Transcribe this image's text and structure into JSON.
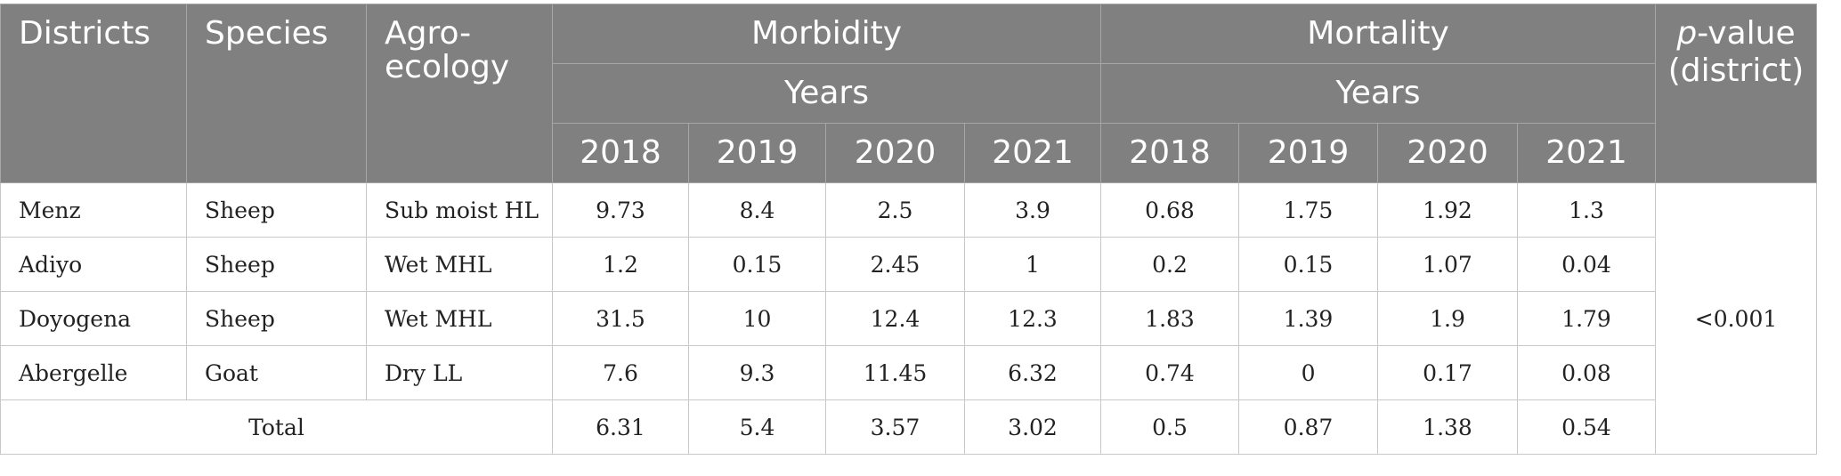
{
  "headers": {
    "districts": "Districts",
    "species": "Species",
    "agro_line1": "Agro-",
    "agro_line2": "ecology",
    "morbidity": "Morbidity",
    "mortality": "Mortality",
    "years_morbidity": "Years",
    "years_mortality": "Years",
    "pvalue_italic": "p",
    "pvalue_rest": "-value",
    "pvalue_line2": "(district)",
    "years": [
      "2018",
      "2019",
      "2020",
      "2021"
    ]
  },
  "rows": [
    {
      "district": "Menz",
      "species": "Sheep",
      "agroecology": "Sub moist HL",
      "morbidity": [
        "9.73",
        "8.4",
        "2.5",
        "3.9"
      ],
      "mortality": [
        "0.68",
        "1.75",
        "1.92",
        "1.3"
      ]
    },
    {
      "district": "Adiyo",
      "species": "Sheep",
      "agroecology": "Wet MHL",
      "morbidity": [
        "1.2",
        "0.15",
        "2.45",
        "1"
      ],
      "mortality": [
        "0.2",
        "0.15",
        "1.07",
        "0.04"
      ]
    },
    {
      "district": "Doyogena",
      "species": "Sheep",
      "agroecology": "Wet MHL",
      "morbidity": [
        "31.5",
        "10",
        "12.4",
        "12.3"
      ],
      "mortality": [
        "1.83",
        "1.39",
        "1.9",
        "1.79"
      ]
    },
    {
      "district": "Abergelle",
      "species": "Goat",
      "agroecology": "Dry LL",
      "morbidity": [
        "7.6",
        "9.3",
        "11.45",
        "6.32"
      ],
      "mortality": [
        "0.74",
        "0",
        "0.17",
        "0.08"
      ]
    }
  ],
  "total": {
    "label": "Total",
    "morbidity": [
      "6.31",
      "5.4",
      "3.57",
      "3.02"
    ],
    "mortality": [
      "0.5",
      "0.87",
      "1.38",
      "0.54"
    ]
  },
  "p_value": "<0.001"
}
